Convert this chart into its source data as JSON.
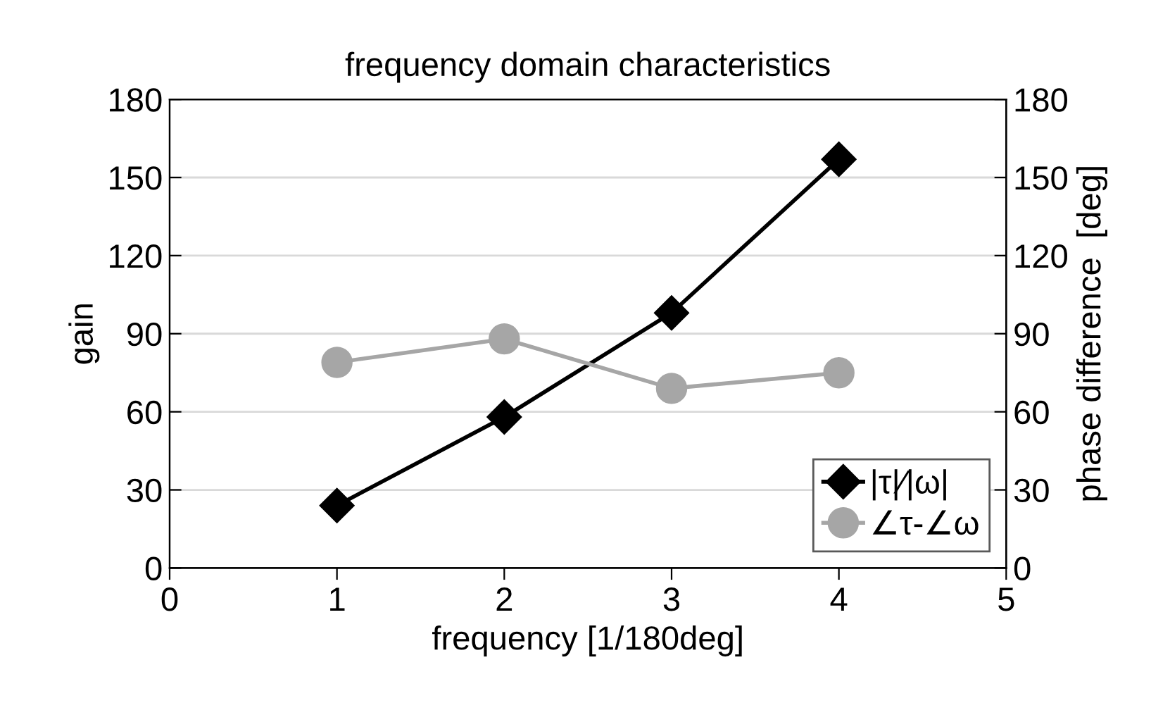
{
  "chart_data": {
    "type": "line",
    "title": "frequency domain characteristics",
    "xlabel": "frequency [1/180deg]",
    "ylabel": "gain",
    "y2label": "phase difference  [deg]",
    "x": [
      1,
      2,
      3,
      4
    ],
    "series": [
      {
        "name": "|τ|∕|ω|",
        "color": "#000000",
        "values": [
          24,
          58,
          98,
          157
        ],
        "marker": "diamond"
      },
      {
        "name": "∠τ-∠ω",
        "color": "#a6a6a6",
        "values": [
          79,
          88,
          69,
          75
        ],
        "marker": "circle",
        "axis": "y2"
      }
    ],
    "xlim": [
      0,
      5
    ],
    "xticks": [
      0,
      1,
      2,
      3,
      4,
      5
    ],
    "ylim": [
      0,
      180
    ],
    "yticks": [
      0,
      30,
      60,
      90,
      120,
      150,
      180
    ],
    "y2lim": [
      0,
      180
    ],
    "y2ticks": [
      0,
      30,
      60,
      90,
      120,
      150,
      180
    ],
    "grid": "y",
    "legend": "bottom right",
    "line_style": "solid"
  }
}
